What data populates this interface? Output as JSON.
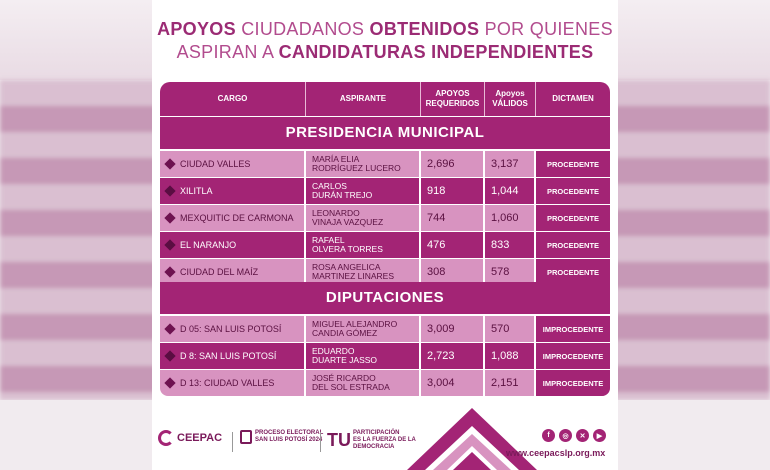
{
  "title": {
    "w1": "APOYOS",
    "w2": "CIUDADANOS",
    "w3": "OBTENIDOS",
    "w4": "POR  QUIENES",
    "w5": "ASPIRAN A",
    "w6": "CANDIDATURAS INDEPENDIENTES"
  },
  "headers": {
    "cargo": "CARGO",
    "aspirante": "ASPIRANTE",
    "requeridos": "APOYOS REQUERIDOS",
    "validos": "Apoyos VÁLIDOS",
    "dictamen": "DICTAMEN"
  },
  "sections": {
    "presidencia": "PRESIDENCIA MUNICIPAL",
    "diputaciones": "DIPUTACIONES"
  },
  "presidencia_rows": [
    {
      "cargo": "CIUDAD VALLES",
      "asp1": "MARÍA ELIA",
      "asp2": "RODRÍGUEZ LUCERO",
      "req": "2,696",
      "val": "3,137",
      "dict": "PROCEDENTE"
    },
    {
      "cargo": "XILITLA",
      "asp1": "CARLOS",
      "asp2": "DURÁN TREJO",
      "req": "918",
      "val": "1,044",
      "dict": "PROCEDENTE"
    },
    {
      "cargo": "MEXQUITIC DE CARMONA",
      "asp1": "LEONARDO",
      "asp2": "VINAJA VAZQUEZ",
      "req": "744",
      "val": "1,060",
      "dict": "PROCEDENTE"
    },
    {
      "cargo": "EL NARANJO",
      "asp1": "RAFAEL",
      "asp2": "OLVERA TORRES",
      "req": "476",
      "val": "833",
      "dict": "PROCEDENTE"
    },
    {
      "cargo": "CIUDAD DEL MAÍZ",
      "asp1": "ROSA ANGELICA",
      "asp2": "MARTINEZ LINARES",
      "req": "308",
      "val": "578",
      "dict": "PROCEDENTE"
    }
  ],
  "diputaciones_rows": [
    {
      "cargo": "D 05: SAN LUIS POTOSÍ",
      "asp1": "MIGUEL ALEJANDRO",
      "asp2": "CANDIA GÓMEZ",
      "req": "3,009",
      "val": "570",
      "dict": "IMPROCEDENTE"
    },
    {
      "cargo": "D 8: SAN LUIS POTOSÍ",
      "asp1": "EDUARDO",
      "asp2": "DUARTE JASSO",
      "req": "2,723",
      "val": "1,088",
      "dict": "IMPROCEDENTE"
    },
    {
      "cargo": "D 13: CIUDAD VALLES",
      "asp1": "JOSÉ RICARDO",
      "asp2": "DEL SOL ESTRADA",
      "req": "3,004",
      "val": "2,151",
      "dict": "IMPROCEDENTE"
    }
  ],
  "footer": {
    "ceepac": "CEEPAC",
    "proceso1": "PROCESO ELECTORAL",
    "proceso2": "SAN LUIS POTOSÍ 2024",
    "tu": "TU",
    "tu1": "PARTICIPACIÓN",
    "tu2": "ES LA FUERZA DE LA",
    "tu3": "DEMOCRACIA",
    "url": "www.ceepacslp.org.mx",
    "social_icons": [
      "facebook-icon",
      "instagram-icon",
      "x-icon",
      "youtube-icon"
    ]
  },
  "colors": {
    "primary": "#a32475",
    "light": "#d893c0",
    "text": "#9b2b74"
  }
}
